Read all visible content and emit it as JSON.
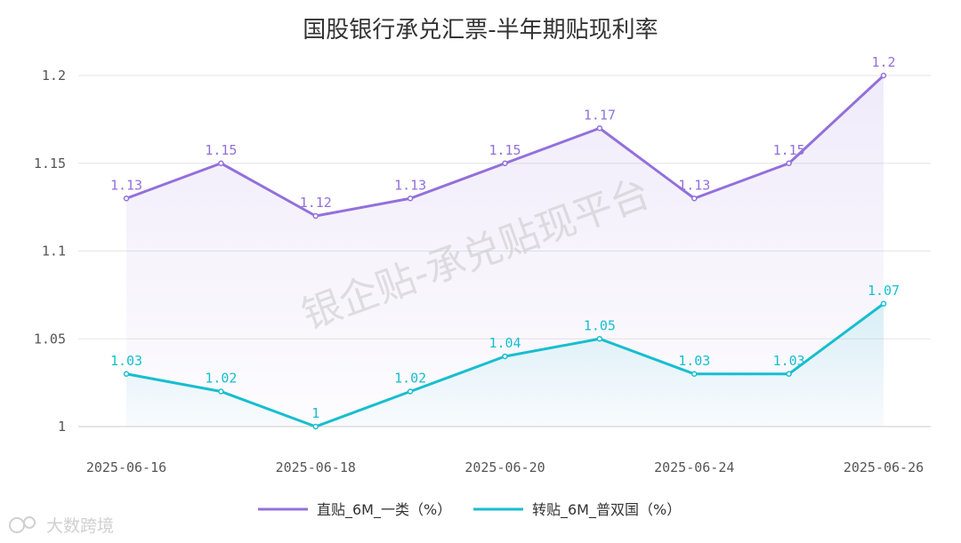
{
  "chart_data": {
    "type": "line",
    "title": "国股银行承兑汇票-半年期贴现利率",
    "x": [
      "2025-06-16",
      "2025-06-17",
      "2025-06-18",
      "2025-06-19",
      "2025-06-20",
      "2025-06-23",
      "2025-06-24",
      "2025-06-25",
      "2025-06-26"
    ],
    "x_tick_labels": [
      "2025-06-16",
      "2025-06-18",
      "2025-06-20",
      "2025-06-24",
      "2025-06-26"
    ],
    "y_ticks": [
      "1",
      "1.05",
      "1.1",
      "1.15",
      "1.2"
    ],
    "ylim": [
      1,
      1.2
    ],
    "xlabel": "",
    "ylabel": "",
    "grid": true,
    "legend_position": "bottom-center",
    "series": [
      {
        "name": "直贴_6M_一类（%）",
        "color": "#9370DB",
        "values": [
          1.13,
          1.15,
          1.12,
          1.13,
          1.15,
          1.17,
          1.13,
          1.15,
          1.2
        ],
        "labels": [
          "1.13",
          "1.15",
          "1.12",
          "1.13",
          "1.15",
          "1.17",
          "1.13",
          "1.15",
          "1.2"
        ]
      },
      {
        "name": "转贴_6M_普双国（%）",
        "color": "#17BECF",
        "values": [
          1.03,
          1.02,
          1.0,
          1.02,
          1.04,
          1.05,
          1.03,
          1.03,
          1.07
        ],
        "labels": [
          "1.03",
          "1.02",
          "1",
          "1.02",
          "1.04",
          "1.05",
          "1.03",
          "1.03",
          "1.07"
        ]
      }
    ]
  },
  "watermark": "银企贴-承兑贴现平台",
  "brand": "大数跨境"
}
